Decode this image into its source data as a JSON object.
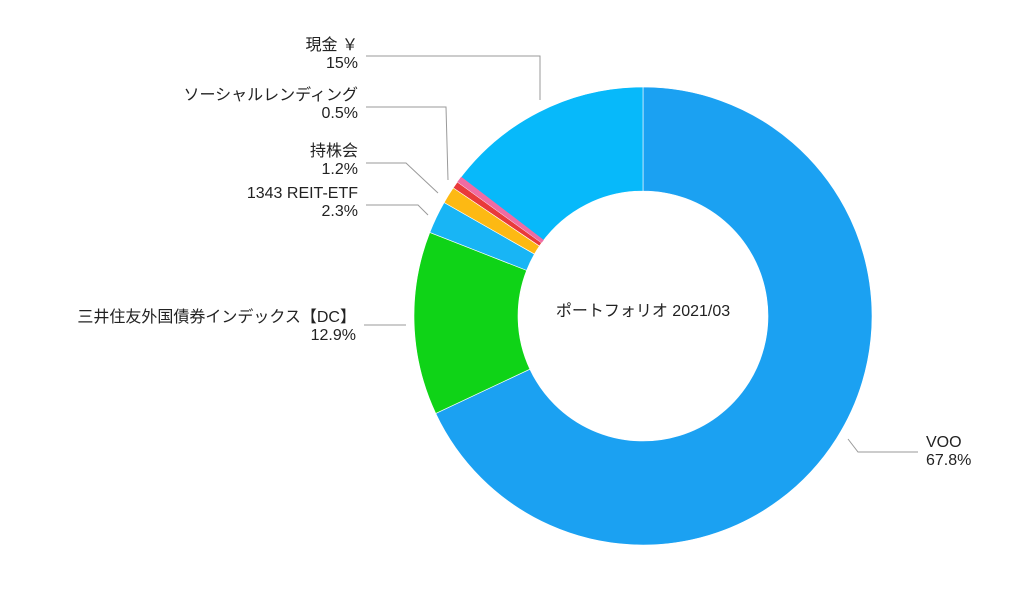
{
  "chart_data": {
    "type": "pie",
    "donut": true,
    "title": "ポートフォリオ 2021/03",
    "start": "top",
    "direction": "clockwise",
    "slices": [
      {
        "label": "VOO",
        "value_label": "67.8%",
        "value": 67.8,
        "color": "#1BA1F2"
      },
      {
        "label": "三井住友外国債券インデックス【DC】",
        "value_label": "12.9%",
        "value": 12.9,
        "color": "#0FD317"
      },
      {
        "label": "1343 REIT-ETF",
        "value_label": "2.3%",
        "value": 2.3,
        "color": "#18B5F5"
      },
      {
        "label": "持株会",
        "value_label": "1.2%",
        "value": 1.2,
        "color": "#FDB913"
      },
      {
        "label": "ソーシャルレンディング",
        "value_label": "0.5%",
        "value": 0.5,
        "color": "#E93A3A"
      },
      {
        "label": "現金 ￥",
        "value_label": "15%",
        "value": 15,
        "color": "#07B9FA"
      }
    ],
    "extra_sliver_color": "#F06BA3"
  }
}
